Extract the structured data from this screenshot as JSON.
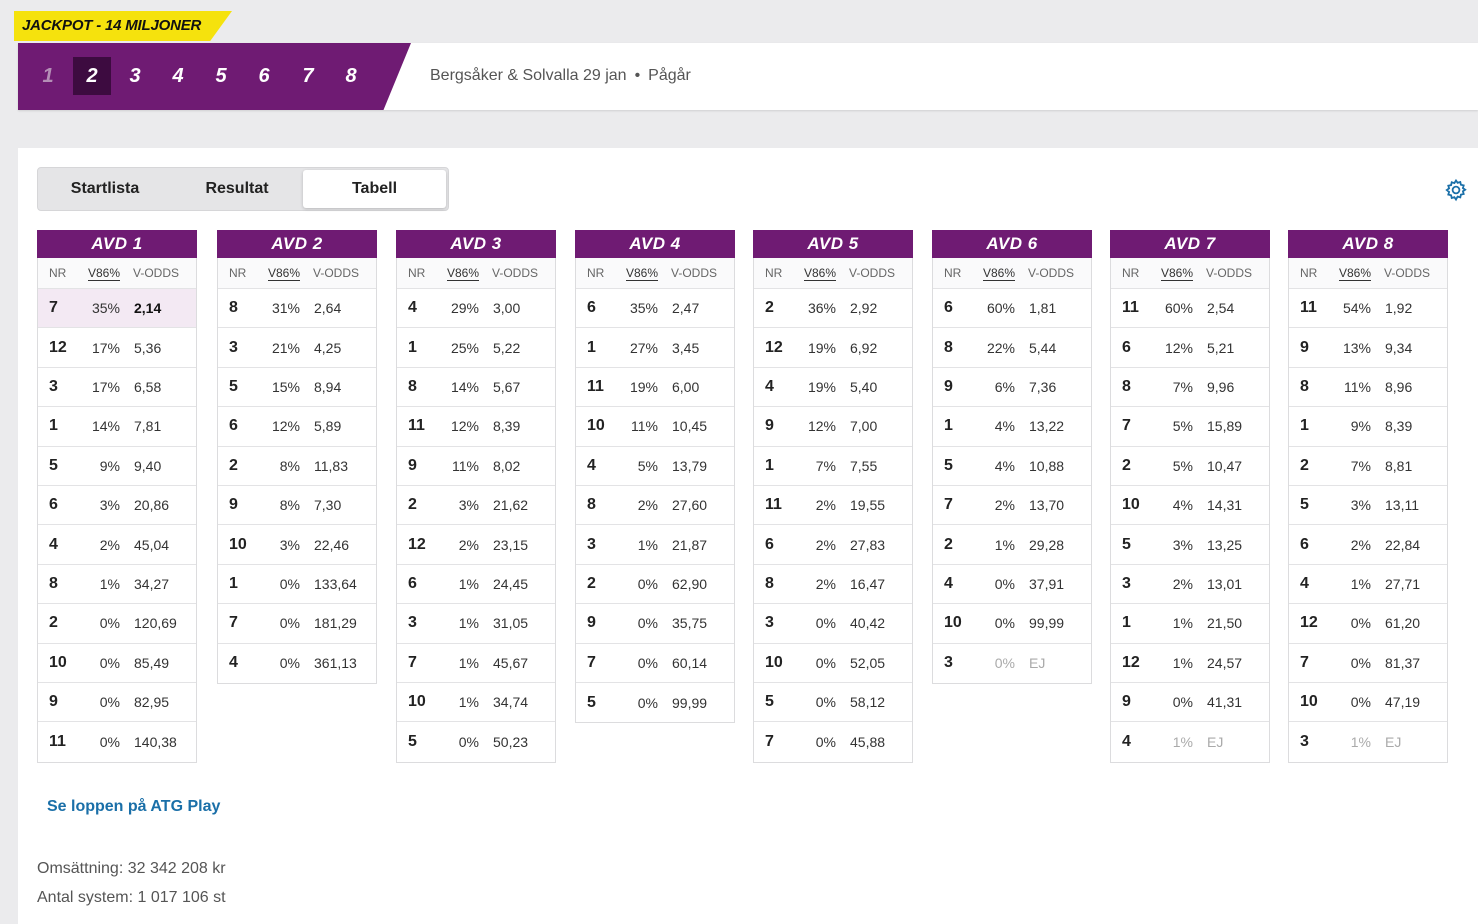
{
  "jackpot": "JACKPOT - 14 MILJONER",
  "races": [
    "1",
    "2",
    "3",
    "4",
    "5",
    "6",
    "7",
    "8"
  ],
  "active_race": "2",
  "track_info": "Bergsåker & Solvalla 29 jan",
  "status": "Pågår",
  "tabs": [
    "Startlista",
    "Resultat",
    "Tabell"
  ],
  "active_tab": "Tabell",
  "columns": {
    "nr": "NR",
    "pct": "V86%",
    "odds": "V-ODDS"
  },
  "avds": [
    {
      "title": "AVD 1",
      "rows": [
        {
          "nr": "7",
          "pct": "35%",
          "odds": "2,14",
          "fav": true
        },
        {
          "nr": "12",
          "pct": "17%",
          "odds": "5,36"
        },
        {
          "nr": "3",
          "pct": "17%",
          "odds": "6,58"
        },
        {
          "nr": "1",
          "pct": "14%",
          "odds": "7,81"
        },
        {
          "nr": "5",
          "pct": "9%",
          "odds": "9,40"
        },
        {
          "nr": "6",
          "pct": "3%",
          "odds": "20,86"
        },
        {
          "nr": "4",
          "pct": "2%",
          "odds": "45,04"
        },
        {
          "nr": "8",
          "pct": "1%",
          "odds": "34,27"
        },
        {
          "nr": "2",
          "pct": "0%",
          "odds": "120,69"
        },
        {
          "nr": "10",
          "pct": "0%",
          "odds": "85,49"
        },
        {
          "nr": "9",
          "pct": "0%",
          "odds": "82,95"
        },
        {
          "nr": "11",
          "pct": "0%",
          "odds": "140,38"
        }
      ]
    },
    {
      "title": "AVD 2",
      "rows": [
        {
          "nr": "8",
          "pct": "31%",
          "odds": "2,64"
        },
        {
          "nr": "3",
          "pct": "21%",
          "odds": "4,25"
        },
        {
          "nr": "5",
          "pct": "15%",
          "odds": "8,94"
        },
        {
          "nr": "6",
          "pct": "12%",
          "odds": "5,89"
        },
        {
          "nr": "2",
          "pct": "8%",
          "odds": "11,83"
        },
        {
          "nr": "9",
          "pct": "8%",
          "odds": "7,30"
        },
        {
          "nr": "10",
          "pct": "3%",
          "odds": "22,46"
        },
        {
          "nr": "1",
          "pct": "0%",
          "odds": "133,64"
        },
        {
          "nr": "7",
          "pct": "0%",
          "odds": "181,29"
        },
        {
          "nr": "4",
          "pct": "0%",
          "odds": "361,13"
        }
      ]
    },
    {
      "title": "AVD 3",
      "rows": [
        {
          "nr": "4",
          "pct": "29%",
          "odds": "3,00"
        },
        {
          "nr": "1",
          "pct": "25%",
          "odds": "5,22"
        },
        {
          "nr": "8",
          "pct": "14%",
          "odds": "5,67"
        },
        {
          "nr": "11",
          "pct": "12%",
          "odds": "8,39"
        },
        {
          "nr": "9",
          "pct": "11%",
          "odds": "8,02"
        },
        {
          "nr": "2",
          "pct": "3%",
          "odds": "21,62"
        },
        {
          "nr": "12",
          "pct": "2%",
          "odds": "23,15"
        },
        {
          "nr": "6",
          "pct": "1%",
          "odds": "24,45"
        },
        {
          "nr": "3",
          "pct": "1%",
          "odds": "31,05"
        },
        {
          "nr": "7",
          "pct": "1%",
          "odds": "45,67"
        },
        {
          "nr": "10",
          "pct": "1%",
          "odds": "34,74"
        },
        {
          "nr": "5",
          "pct": "0%",
          "odds": "50,23"
        }
      ]
    },
    {
      "title": "AVD 4",
      "rows": [
        {
          "nr": "6",
          "pct": "35%",
          "odds": "2,47"
        },
        {
          "nr": "1",
          "pct": "27%",
          "odds": "3,45"
        },
        {
          "nr": "11",
          "pct": "19%",
          "odds": "6,00"
        },
        {
          "nr": "10",
          "pct": "11%",
          "odds": "10,45"
        },
        {
          "nr": "4",
          "pct": "5%",
          "odds": "13,79"
        },
        {
          "nr": "8",
          "pct": "2%",
          "odds": "27,60"
        },
        {
          "nr": "3",
          "pct": "1%",
          "odds": "21,87"
        },
        {
          "nr": "2",
          "pct": "0%",
          "odds": "62,90"
        },
        {
          "nr": "9",
          "pct": "0%",
          "odds": "35,75"
        },
        {
          "nr": "7",
          "pct": "0%",
          "odds": "60,14"
        },
        {
          "nr": "5",
          "pct": "0%",
          "odds": "99,99"
        }
      ]
    },
    {
      "title": "AVD 5",
      "rows": [
        {
          "nr": "2",
          "pct": "36%",
          "odds": "2,92"
        },
        {
          "nr": "12",
          "pct": "19%",
          "odds": "6,92"
        },
        {
          "nr": "4",
          "pct": "19%",
          "odds": "5,40"
        },
        {
          "nr": "9",
          "pct": "12%",
          "odds": "7,00"
        },
        {
          "nr": "1",
          "pct": "7%",
          "odds": "7,55"
        },
        {
          "nr": "11",
          "pct": "2%",
          "odds": "19,55"
        },
        {
          "nr": "6",
          "pct": "2%",
          "odds": "27,83"
        },
        {
          "nr": "8",
          "pct": "2%",
          "odds": "16,47"
        },
        {
          "nr": "3",
          "pct": "0%",
          "odds": "40,42"
        },
        {
          "nr": "10",
          "pct": "0%",
          "odds": "52,05"
        },
        {
          "nr": "5",
          "pct": "0%",
          "odds": "58,12"
        },
        {
          "nr": "7",
          "pct": "0%",
          "odds": "45,88"
        }
      ]
    },
    {
      "title": "AVD 6",
      "rows": [
        {
          "nr": "6",
          "pct": "60%",
          "odds": "1,81"
        },
        {
          "nr": "8",
          "pct": "22%",
          "odds": "5,44"
        },
        {
          "nr": "9",
          "pct": "6%",
          "odds": "7,36"
        },
        {
          "nr": "1",
          "pct": "4%",
          "odds": "13,22"
        },
        {
          "nr": "5",
          "pct": "4%",
          "odds": "10,88"
        },
        {
          "nr": "7",
          "pct": "2%",
          "odds": "13,70"
        },
        {
          "nr": "2",
          "pct": "1%",
          "odds": "29,28"
        },
        {
          "nr": "4",
          "pct": "0%",
          "odds": "37,91"
        },
        {
          "nr": "10",
          "pct": "0%",
          "odds": "99,99"
        },
        {
          "nr": "3",
          "pct": "0%",
          "odds": "EJ",
          "ej": true
        }
      ]
    },
    {
      "title": "AVD 7",
      "rows": [
        {
          "nr": "11",
          "pct": "60%",
          "odds": "2,54"
        },
        {
          "nr": "6",
          "pct": "12%",
          "odds": "5,21"
        },
        {
          "nr": "8",
          "pct": "7%",
          "odds": "9,96"
        },
        {
          "nr": "7",
          "pct": "5%",
          "odds": "15,89"
        },
        {
          "nr": "2",
          "pct": "5%",
          "odds": "10,47"
        },
        {
          "nr": "10",
          "pct": "4%",
          "odds": "14,31"
        },
        {
          "nr": "5",
          "pct": "3%",
          "odds": "13,25"
        },
        {
          "nr": "3",
          "pct": "2%",
          "odds": "13,01"
        },
        {
          "nr": "1",
          "pct": "1%",
          "odds": "21,50"
        },
        {
          "nr": "12",
          "pct": "1%",
          "odds": "24,57"
        },
        {
          "nr": "9",
          "pct": "0%",
          "odds": "41,31"
        },
        {
          "nr": "4",
          "pct": "1%",
          "odds": "EJ",
          "ej": true
        }
      ]
    },
    {
      "title": "AVD 8",
      "rows": [
        {
          "nr": "11",
          "pct": "54%",
          "odds": "1,92"
        },
        {
          "nr": "9",
          "pct": "13%",
          "odds": "9,34"
        },
        {
          "nr": "8",
          "pct": "11%",
          "odds": "8,96"
        },
        {
          "nr": "1",
          "pct": "9%",
          "odds": "8,39"
        },
        {
          "nr": "2",
          "pct": "7%",
          "odds": "8,81"
        },
        {
          "nr": "5",
          "pct": "3%",
          "odds": "13,11"
        },
        {
          "nr": "6",
          "pct": "2%",
          "odds": "22,84"
        },
        {
          "nr": "4",
          "pct": "1%",
          "odds": "27,71"
        },
        {
          "nr": "12",
          "pct": "0%",
          "odds": "61,20"
        },
        {
          "nr": "7",
          "pct": "0%",
          "odds": "81,37"
        },
        {
          "nr": "10",
          "pct": "0%",
          "odds": "47,19"
        },
        {
          "nr": "3",
          "pct": "1%",
          "odds": "EJ",
          "ej": true
        }
      ]
    }
  ],
  "atg_link": "Se loppen på ATG Play",
  "stats": {
    "turnover": "Omsättning: 32 342 208 kr",
    "systems": "Antal system: 1 017 106 st"
  },
  "icons": {
    "settings": "gear-icon"
  },
  "colors": {
    "brand_purple": "#6f1b73",
    "jackpot_yellow": "#f5e20d",
    "link_blue": "#1a6fa8",
    "favorite_bg": "#f3e9f3"
  }
}
